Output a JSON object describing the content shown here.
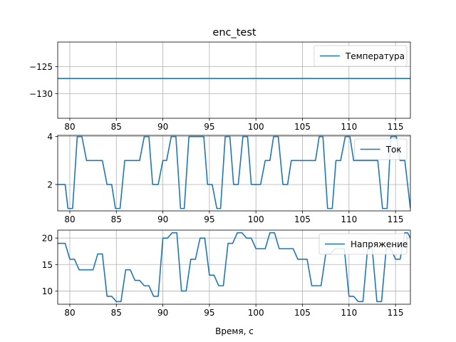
{
  "chart_data": {
    "title": "enc_test",
    "xlabel": "Время, с",
    "xlim": [
      78.7,
      116.6
    ],
    "xticks": [
      80,
      85,
      90,
      95,
      100,
      105,
      110,
      115
    ],
    "grid": true,
    "panels": [
      {
        "type": "line",
        "ylim": [
          -134.5,
          -120.5
        ],
        "yticks": [
          -125,
          -130
        ],
        "legend": "top-right",
        "series": [
          {
            "name": "Температура",
            "color": "#1f77b4",
            "points": [
              [
                78.7,
                -127.2
              ],
              [
                116.6,
                -127.2
              ]
            ]
          }
        ]
      },
      {
        "type": "line",
        "ylim": [
          0.9,
          4.05
        ],
        "yticks": [
          4,
          2
        ],
        "legend": "top-right",
        "series": [
          {
            "name": "Ток",
            "color": "#1f77b4",
            "points": [
              [
                78.7,
                2
              ],
              [
                79.5,
                2
              ],
              [
                79.8,
                1
              ],
              [
                80.3,
                1
              ],
              [
                80.8,
                4
              ],
              [
                81.3,
                4
              ],
              [
                81.8,
                3
              ],
              [
                83.5,
                3
              ],
              [
                84,
                2
              ],
              [
                84.5,
                2
              ],
              [
                84.9,
                1
              ],
              [
                85.4,
                1
              ],
              [
                85.9,
                3
              ],
              [
                87.5,
                3
              ],
              [
                88,
                4
              ],
              [
                88.5,
                4
              ],
              [
                88.9,
                2
              ],
              [
                89.5,
                2
              ],
              [
                90,
                3
              ],
              [
                90.4,
                3
              ],
              [
                90.9,
                4
              ],
              [
                91.4,
                4
              ],
              [
                91.9,
                1
              ],
              [
                92.3,
                1
              ],
              [
                92.8,
                4
              ],
              [
                94.4,
                4
              ],
              [
                94.8,
                2
              ],
              [
                95.3,
                2
              ],
              [
                95.8,
                1
              ],
              [
                96.2,
                1
              ],
              [
                96.7,
                4
              ],
              [
                97.2,
                4
              ],
              [
                97.6,
                2
              ],
              [
                98.1,
                2
              ],
              [
                98.6,
                4
              ],
              [
                99.1,
                4
              ],
              [
                99.5,
                2
              ],
              [
                100.5,
                2
              ],
              [
                101,
                3
              ],
              [
                101.5,
                3
              ],
              [
                101.9,
                4
              ],
              [
                102.4,
                4
              ],
              [
                102.9,
                2
              ],
              [
                103.4,
                2
              ],
              [
                103.8,
                3
              ],
              [
                106.4,
                3
              ],
              [
                106.8,
                4
              ],
              [
                107.2,
                4
              ],
              [
                107.7,
                1
              ],
              [
                108.2,
                1
              ],
              [
                108.6,
                3
              ],
              [
                109.1,
                3
              ],
              [
                109.6,
                4
              ],
              [
                110.1,
                4
              ],
              [
                110.5,
                3
              ],
              [
                113.1,
                3
              ],
              [
                113.6,
                1
              ],
              [
                114.1,
                1
              ],
              [
                114.5,
                4
              ],
              [
                115.1,
                4
              ],
              [
                115.5,
                3
              ],
              [
                116,
                3
              ],
              [
                116.6,
                1
              ]
            ]
          }
        ]
      },
      {
        "type": "line",
        "ylim": [
          7.5,
          21.5
        ],
        "yticks": [
          20,
          15,
          10
        ],
        "legend": "top-right",
        "series": [
          {
            "name": "Напряжение",
            "color": "#1f77b4",
            "points": [
              [
                78.7,
                19
              ],
              [
                79.5,
                19
              ],
              [
                80,
                16
              ],
              [
                80.5,
                16
              ],
              [
                81,
                14
              ],
              [
                82.5,
                14
              ],
              [
                83,
                17
              ],
              [
                83.5,
                17
              ],
              [
                84,
                9
              ],
              [
                84.5,
                9
              ],
              [
                85,
                8
              ],
              [
                85.5,
                8
              ],
              [
                86,
                14
              ],
              [
                86.5,
                14
              ],
              [
                87,
                12
              ],
              [
                87.5,
                12
              ],
              [
                88,
                11
              ],
              [
                88.5,
                11
              ],
              [
                89,
                9
              ],
              [
                89.5,
                9
              ],
              [
                90,
                20
              ],
              [
                90.5,
                20
              ],
              [
                91,
                21
              ],
              [
                91.5,
                21
              ],
              [
                92,
                10
              ],
              [
                92.5,
                10
              ],
              [
                93,
                16
              ],
              [
                93.5,
                16
              ],
              [
                94,
                20
              ],
              [
                94.5,
                20
              ],
              [
                95,
                13
              ],
              [
                95.5,
                13
              ],
              [
                96,
                11
              ],
              [
                96.5,
                11
              ],
              [
                97,
                19
              ],
              [
                97.5,
                19
              ],
              [
                98,
                21
              ],
              [
                98.5,
                21
              ],
              [
                99,
                20
              ],
              [
                99.5,
                20
              ],
              [
                100,
                18
              ],
              [
                101,
                18
              ],
              [
                101.5,
                21
              ],
              [
                102,
                21
              ],
              [
                102.5,
                18
              ],
              [
                104,
                18
              ],
              [
                104.5,
                16
              ],
              [
                105.5,
                16
              ],
              [
                106,
                11
              ],
              [
                107,
                11
              ],
              [
                107.5,
                17
              ],
              [
                108,
                17
              ],
              [
                108.5,
                18
              ],
              [
                109.5,
                18
              ],
              [
                110,
                9
              ],
              [
                110.5,
                9
              ],
              [
                111,
                8
              ],
              [
                111.5,
                8
              ],
              [
                112,
                18
              ],
              [
                112.5,
                18
              ],
              [
                113,
                8
              ],
              [
                113.5,
                8
              ],
              [
                114,
                18
              ],
              [
                114.5,
                18
              ],
              [
                115,
                16
              ],
              [
                115.5,
                16
              ],
              [
                116,
                21
              ],
              [
                116.3,
                21
              ],
              [
                116.6,
                20
              ]
            ]
          }
        ]
      }
    ]
  }
}
